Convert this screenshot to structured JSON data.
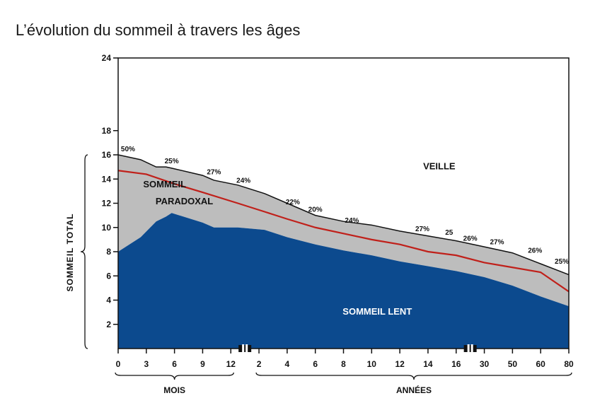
{
  "page": {
    "title": "L’évolution du sommeil à travers les âges"
  },
  "chart_data": {
    "type": "area",
    "title": "",
    "y_axis": {
      "ylim": [
        0,
        24
      ],
      "ticks": [
        2,
        4,
        6,
        8,
        10,
        12,
        14,
        16,
        18,
        24
      ],
      "side_label": "SOMMEIL TOTAL",
      "side_label_words": [
        "SOMMEIL",
        "TOTAL"
      ]
    },
    "x_axis": {
      "tick_labels": [
        "0",
        "3",
        "6",
        "9",
        "12",
        "2",
        "4",
        "6",
        "8",
        "10",
        "12",
        "14",
        "16",
        "30",
        "50",
        "60",
        "80"
      ],
      "groups": [
        {
          "label": "MOIS",
          "from": 0,
          "to": 4
        },
        {
          "label": "ANNÉES",
          "from": 5,
          "to": 16
        }
      ],
      "axis_breaks_after_index": [
        4,
        12
      ]
    },
    "series": [
      {
        "name": "VEILLE",
        "color": "#ffffff"
      },
      {
        "name": "SOMMEIL PARADOXAL",
        "color": "#bdbdbd",
        "label_lines": [
          "SOMMEIL",
          "PARADOXAL"
        ]
      },
      {
        "name": "SOMMEIL LENT",
        "color": "#0c4a8e"
      }
    ],
    "points": [
      {
        "x": 0,
        "total": 16.0,
        "lent": 8.0
      },
      {
        "x": 0.8,
        "total": 15.6,
        "lent": 9.2
      },
      {
        "x": 1.35,
        "total": 15.0,
        "lent": 10.5
      },
      {
        "x": 1.7,
        "total": 15.0,
        "lent": 10.9
      },
      {
        "x": 1.9,
        "total": 14.9,
        "lent": 11.2
      },
      {
        "x": 3.0,
        "total": 14.3,
        "lent": 10.4
      },
      {
        "x": 3.4,
        "total": 13.9,
        "lent": 10.0
      },
      {
        "x": 4.25,
        "total": 13.5,
        "lent": 10.0
      },
      {
        "x": 5.2,
        "total": 12.8,
        "lent": 9.8
      },
      {
        "x": 6.0,
        "total": 12.0,
        "lent": 9.2
      },
      {
        "x": 7.0,
        "total": 11.0,
        "lent": 8.6
      },
      {
        "x": 8.0,
        "total": 10.5,
        "lent": 8.1
      },
      {
        "x": 9.0,
        "total": 10.2,
        "lent": 7.7
      },
      {
        "x": 10.0,
        "total": 9.7,
        "lent": 7.2
      },
      {
        "x": 11.0,
        "total": 9.3,
        "lent": 6.8
      },
      {
        "x": 12.0,
        "total": 8.9,
        "lent": 6.4
      },
      {
        "x": 13.0,
        "total": 8.4,
        "lent": 5.9
      },
      {
        "x": 14.0,
        "total": 7.9,
        "lent": 5.2
      },
      {
        "x": 15.0,
        "total": 7.0,
        "lent": 4.3
      },
      {
        "x": 16.0,
        "total": 6.1,
        "lent": 3.5
      }
    ],
    "divider_line": {
      "color": "#c0201a",
      "points": [
        {
          "x": 0,
          "y": 14.7
        },
        {
          "x": 1.0,
          "y": 14.4
        },
        {
          "x": 2.0,
          "y": 13.6
        },
        {
          "x": 3.0,
          "y": 12.9
        },
        {
          "x": 4.25,
          "y": 12.0
        },
        {
          "x": 5.2,
          "y": 11.3
        },
        {
          "x": 6.0,
          "y": 10.7
        },
        {
          "x": 7.0,
          "y": 10.0
        },
        {
          "x": 8.0,
          "y": 9.5
        },
        {
          "x": 9.0,
          "y": 9.0
        },
        {
          "x": 10.0,
          "y": 8.6
        },
        {
          "x": 11.0,
          "y": 8.0
        },
        {
          "x": 12.0,
          "y": 7.7
        },
        {
          "x": 13.0,
          "y": 7.1
        },
        {
          "x": 14.0,
          "y": 6.7
        },
        {
          "x": 15.0,
          "y": 6.3
        },
        {
          "x": 16.0,
          "y": 4.7
        }
      ]
    },
    "percent_labels": [
      {
        "text": "50%",
        "x": 0.35,
        "y": 16.3
      },
      {
        "text": "25%",
        "x": 1.9,
        "y": 15.3
      },
      {
        "text": "27%",
        "x": 3.4,
        "y": 14.4
      },
      {
        "text": "24%",
        "x": 4.45,
        "y": 13.7
      },
      {
        "text": "22%",
        "x": 6.2,
        "y": 11.9
      },
      {
        "text": "20%",
        "x": 7.0,
        "y": 11.3
      },
      {
        "text": "24%",
        "x": 8.3,
        "y": 10.4
      },
      {
        "text": "27%",
        "x": 10.8,
        "y": 9.7
      },
      {
        "text": "25",
        "x": 11.75,
        "y": 9.4
      },
      {
        "text": "26%",
        "x": 12.5,
        "y": 8.9
      },
      {
        "text": "27%",
        "x": 13.45,
        "y": 8.6
      },
      {
        "text": "26%",
        "x": 14.8,
        "y": 7.9
      },
      {
        "text": "25%",
        "x": 15.75,
        "y": 7.0
      }
    ],
    "region_labels": {
      "veille_pos": {
        "x": 11.4,
        "y": 14.8
      },
      "paradoxal_pos": {
        "x": 1.65,
        "y": 13.3
      },
      "paradoxal_line2_pos": {
        "x": 2.35,
        "y": 11.9
      },
      "lent_pos": {
        "x": 9.2,
        "y": 2.8
      }
    }
  }
}
